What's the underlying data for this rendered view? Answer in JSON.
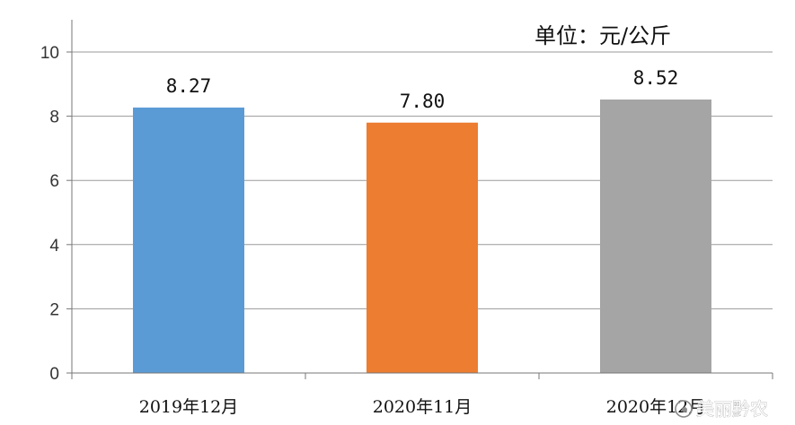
{
  "chart_data": {
    "type": "bar",
    "categories": [
      "2019年12月",
      "2020年11月",
      "2020年12月"
    ],
    "values": [
      8.27,
      7.8,
      8.52
    ],
    "data_labels": [
      "8.27",
      "7.80",
      "8.52"
    ],
    "bar_colors": [
      "#5b9bd5",
      "#ed7d31",
      "#a5a5a5"
    ],
    "unit_label": "单位：元/公斤",
    "ylim": [
      0,
      10
    ],
    "yticks": [
      0,
      2,
      4,
      6,
      8,
      10
    ],
    "grid": true,
    "xlabel": "",
    "ylabel": ""
  },
  "watermark": {
    "text": "美丽黔农",
    "icon": "weibo-icon"
  }
}
